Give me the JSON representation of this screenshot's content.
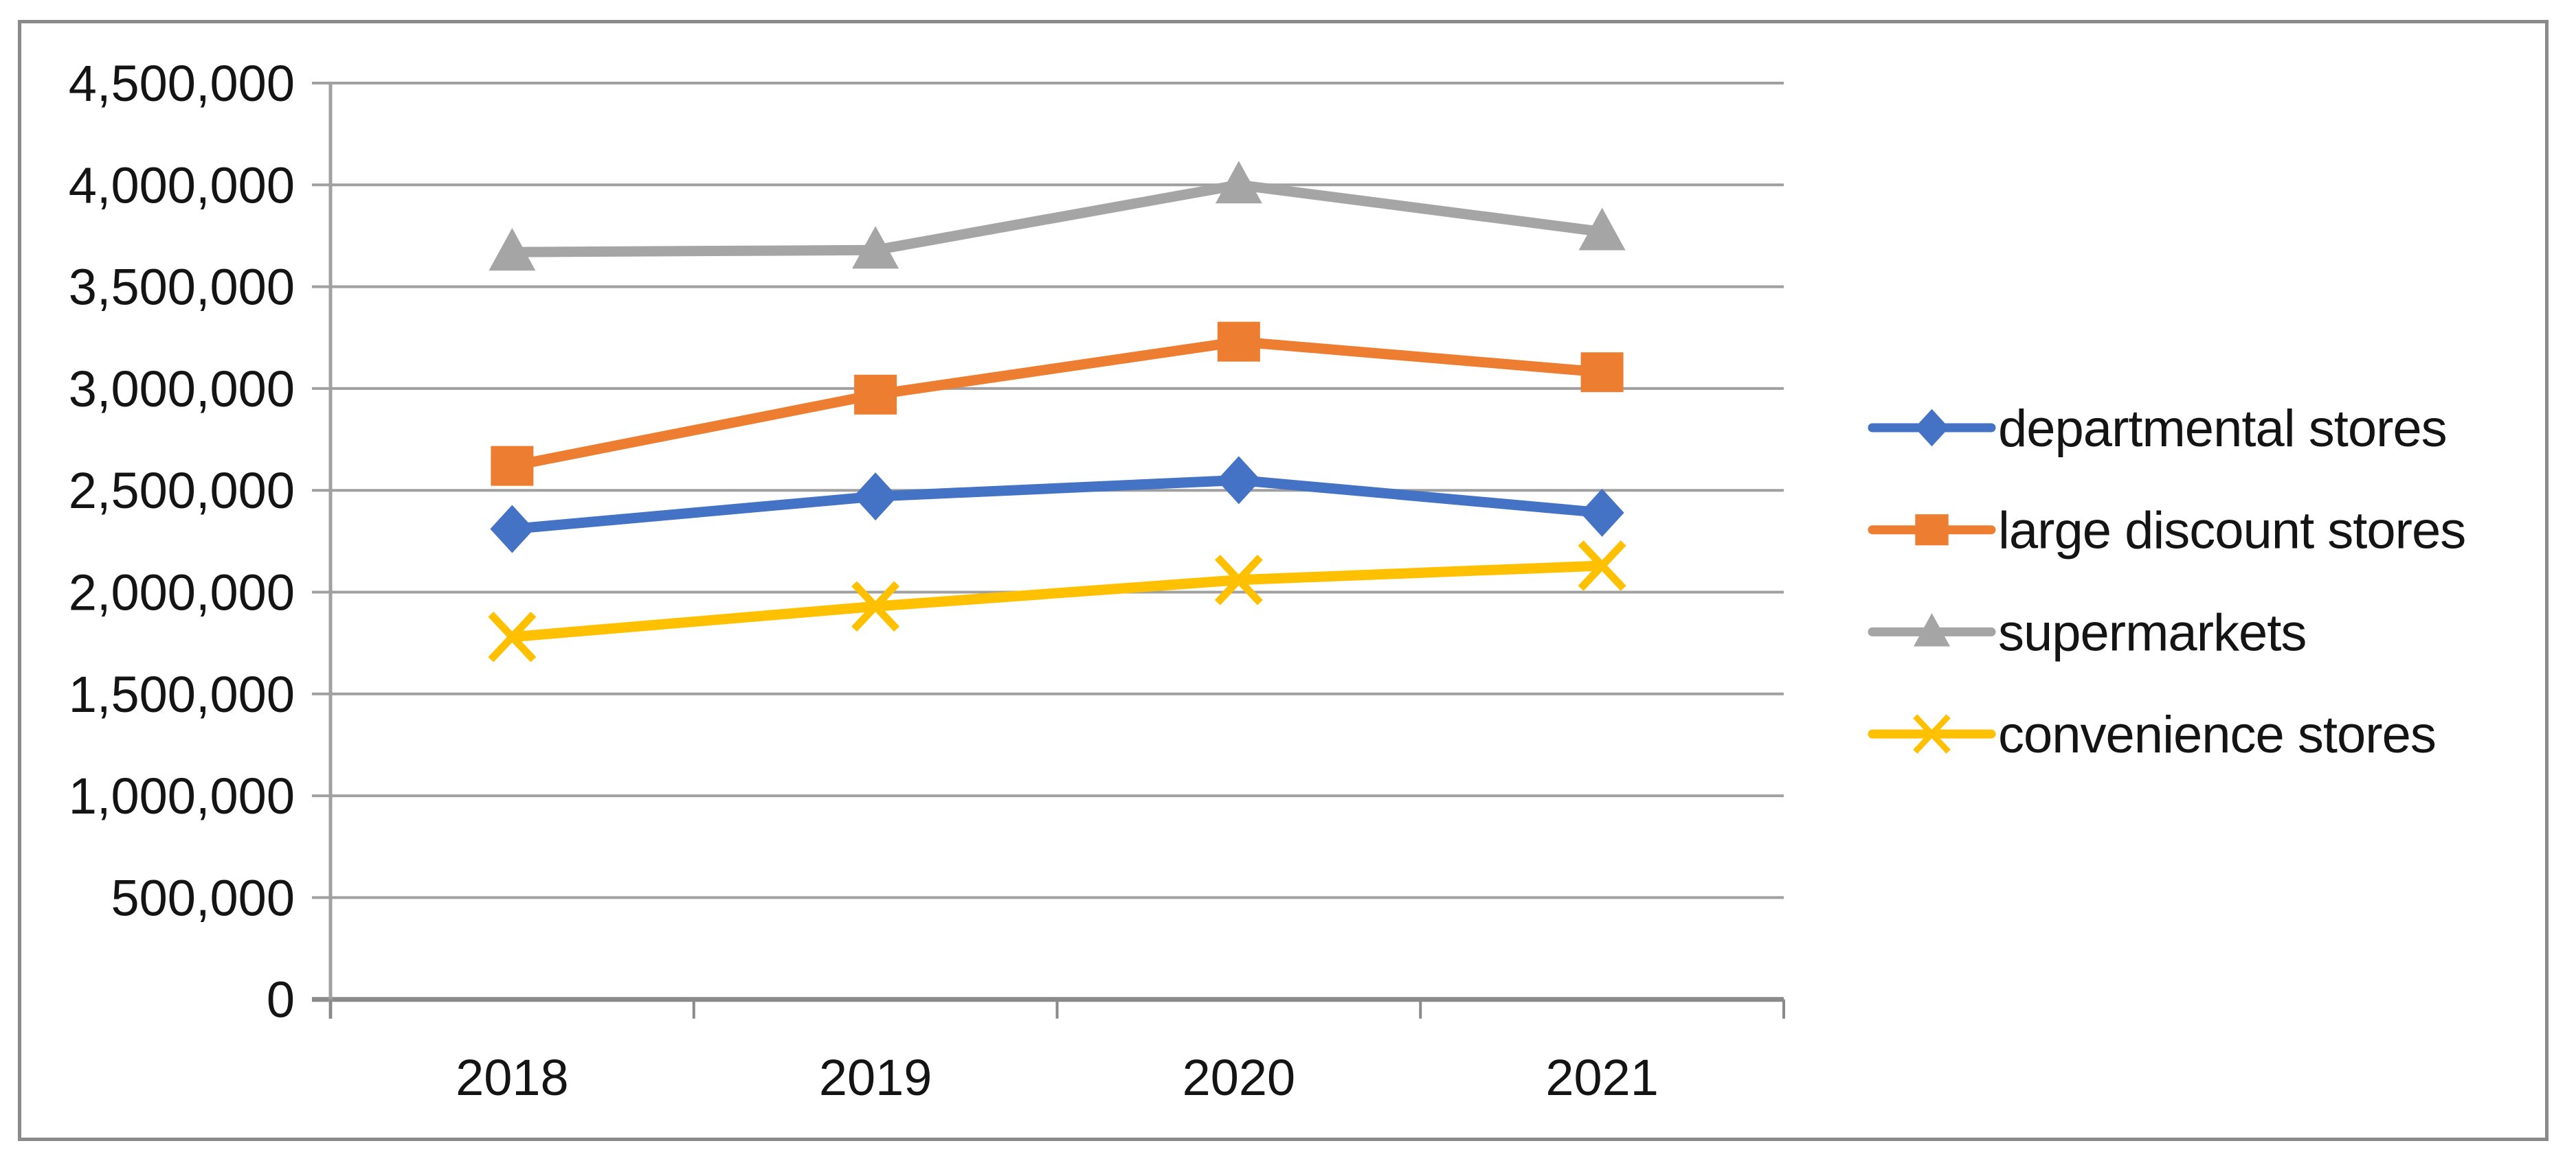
{
  "frame": {
    "border_color": "#8a8a8a"
  },
  "chart_data": {
    "type": "line",
    "title": "",
    "xlabel": "",
    "ylabel": "",
    "categories": [
      "2018",
      "2019",
      "2020",
      "2021"
    ],
    "series": [
      {
        "name": "departmental stores",
        "color": "#4472C4",
        "marker": "diamond",
        "values": [
          2310000,
          2470000,
          2550000,
          2390000
        ]
      },
      {
        "name": "large discount stores",
        "color": "#ED7D31",
        "marker": "square",
        "values": [
          2620000,
          2970000,
          3230000,
          3080000
        ]
      },
      {
        "name": "supermarkets",
        "color": "#A5A5A5",
        "marker": "triangle",
        "values": [
          3670000,
          3680000,
          4000000,
          3770000
        ]
      },
      {
        "name": "convenience stores",
        "color": "#FFC000",
        "marker": "x",
        "values": [
          1780000,
          1930000,
          2060000,
          2130000
        ]
      }
    ],
    "ylim": [
      0,
      4500000
    ],
    "ytick_step": 500000,
    "ytick_labels": [
      "0",
      "500,000",
      "1,000,000",
      "1,500,000",
      "2,000,000",
      "2,500,000",
      "3,000,000",
      "3,500,000",
      "4,000,000",
      "4,500,000"
    ],
    "grid": true,
    "legend_position": "right",
    "colors": {
      "gridline": "#a0a0a0",
      "axis": "#8a8a8a",
      "text": "#141414"
    }
  }
}
